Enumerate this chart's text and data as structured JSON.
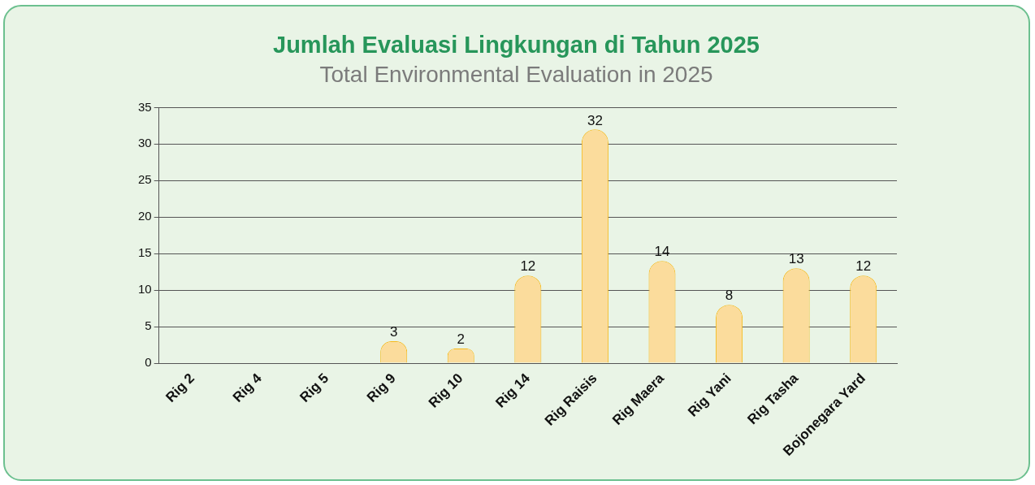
{
  "chart_data": {
    "type": "bar",
    "title": "Jumlah Evaluasi Lingkungan di Tahun 2025",
    "subtitle": "Total Environmental Evaluation in 2025",
    "categories": [
      "Rig 2",
      "Rig 4",
      "Rig 5",
      "Rig 9",
      "Rig 10",
      "Rig 14",
      "Rig Raisis",
      "Rig Maera",
      "Rig Yani",
      "Rig Tasha",
      "Bojonegara Yard"
    ],
    "values": [
      0,
      0,
      0,
      3,
      2,
      12,
      32,
      14,
      8,
      13,
      12
    ],
    "value_labels": [
      null,
      null,
      null,
      "3",
      "2",
      "12",
      "32",
      "14",
      "8",
      "13",
      "12"
    ],
    "color": "#fbdc9c",
    "ylim": [
      0,
      35
    ],
    "yticks": [
      0,
      5,
      10,
      15,
      20,
      25,
      30,
      35
    ],
    "grid": "y"
  }
}
